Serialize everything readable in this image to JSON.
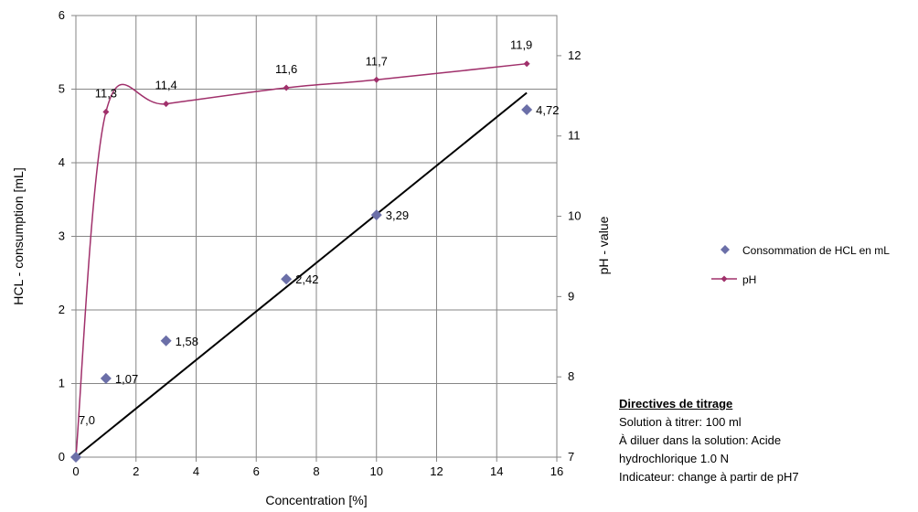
{
  "chart_data": {
    "type": "scatter",
    "title": "",
    "xlabel": "Concentration [%]",
    "ylabel": "HCL - consumption  [mL]",
    "y2label": "pH - value",
    "xlim": [
      0,
      16
    ],
    "ylim": [
      0,
      6
    ],
    "y2lim": [
      7,
      12.5
    ],
    "x_ticks": [
      "0",
      "2",
      "4",
      "6",
      "8",
      "10",
      "12",
      "14",
      "16"
    ],
    "y_ticks": [
      "0",
      "1",
      "2",
      "3",
      "4",
      "5",
      "6"
    ],
    "y2_ticks": [
      "7",
      "8",
      "9",
      "10",
      "11",
      "12"
    ],
    "grid": true,
    "legend_position": "right",
    "series": [
      {
        "name": "Consommation de HCL en mL",
        "axis": "left",
        "marker": "diamond",
        "color": "#6B6FA8",
        "x": [
          0,
          1,
          3,
          7,
          10,
          15
        ],
        "y": [
          0,
          1.07,
          1.58,
          2.42,
          3.29,
          4.72
        ],
        "labels": [
          "",
          "1,07",
          "1,58",
          "2,42",
          "3,29",
          "4,72"
        ]
      },
      {
        "name": "pH",
        "axis": "right",
        "marker": "small-diamond",
        "color": "#A0306B",
        "smooth": true,
        "x": [
          0,
          1,
          3,
          7,
          10,
          15
        ],
        "y": [
          7.0,
          11.3,
          11.4,
          11.6,
          11.7,
          11.9
        ],
        "labels": [
          "7,0",
          "11,3",
          "11,4",
          "11,6",
          "11,7",
          "11,9"
        ]
      }
    ],
    "trendline": {
      "color": "#000000",
      "axis": "left",
      "x": [
        0,
        15
      ],
      "y": [
        0,
        4.95
      ]
    }
  },
  "notes": {
    "title": "Directives de titrage",
    "lines": [
      "Solution à titrer: 100 ml",
      "À diluer dans la solution: Acide",
      "hydrochlorique 1.0 N",
      "Indicateur: change à partir de pH7"
    ]
  }
}
